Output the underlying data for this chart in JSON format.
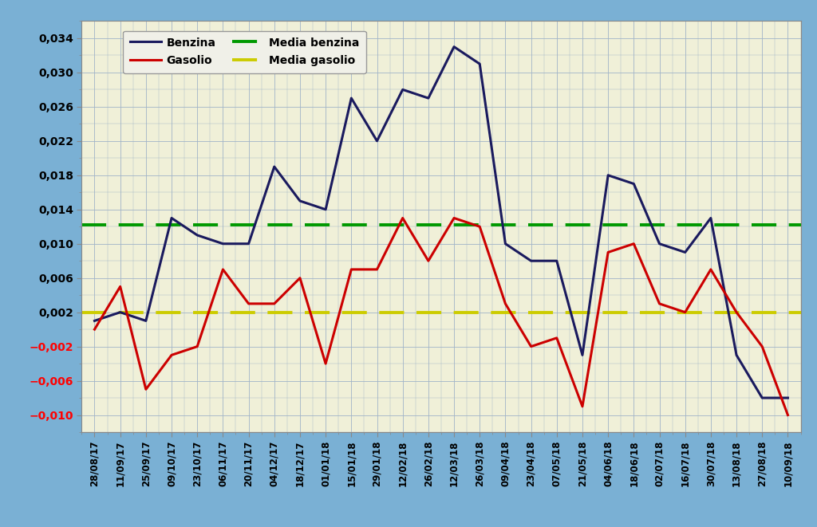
{
  "dates": [
    "28/08/17",
    "11/09/17",
    "25/09/17",
    "09/10/17",
    "23/10/17",
    "06/11/17",
    "20/11/17",
    "04/12/17",
    "18/12/17",
    "01/01/18",
    "15/01/18",
    "29/01/18",
    "12/02/18",
    "26/02/18",
    "12/03/18",
    "26/03/18",
    "09/04/18",
    "23/04/18",
    "07/05/18",
    "21/05/18",
    "04/06/18",
    "18/06/18",
    "02/07/18",
    "16/07/18",
    "30/07/18",
    "13/08/18",
    "27/08/18",
    "10/09/18"
  ],
  "benzina": [
    0.001,
    0.002,
    0.001,
    0.013,
    0.011,
    0.01,
    0.01,
    0.019,
    0.015,
    0.014,
    0.027,
    0.022,
    0.028,
    0.027,
    0.033,
    0.031,
    0.01,
    0.008,
    0.008,
    -0.003,
    0.018,
    0.017,
    0.01,
    0.009,
    0.013,
    -0.003,
    -0.008,
    -0.008
  ],
  "gasolio": [
    0.0,
    0.005,
    -0.007,
    -0.003,
    -0.002,
    0.007,
    0.003,
    0.003,
    0.006,
    -0.004,
    0.007,
    0.007,
    0.013,
    0.008,
    0.013,
    0.012,
    0.003,
    -0.002,
    -0.001,
    -0.009,
    0.009,
    0.01,
    0.003,
    0.002,
    0.007,
    0.002,
    -0.002,
    -0.01
  ],
  "media_benzina": 0.0122,
  "media_gasolio": 0.002,
  "benzina_color": "#1a1a5e",
  "gasolio_color": "#cc0000",
  "media_benzina_color": "#009900",
  "media_gasolio_color": "#cccc00",
  "background_outer": "#7ab0d4",
  "background_inner": "#f0f0d8",
  "grid_color": "#a0b4c8",
  "yticks": [
    0.034,
    0.03,
    0.026,
    0.022,
    0.018,
    0.014,
    0.01,
    0.006,
    0.002,
    -0.002,
    -0.006,
    -0.01
  ],
  "ylim": [
    -0.012,
    0.036
  ],
  "legend_row1": [
    "Benzina",
    "Gasolio"
  ],
  "legend_row2": [
    "Media benzina",
    "Media gasolio"
  ]
}
